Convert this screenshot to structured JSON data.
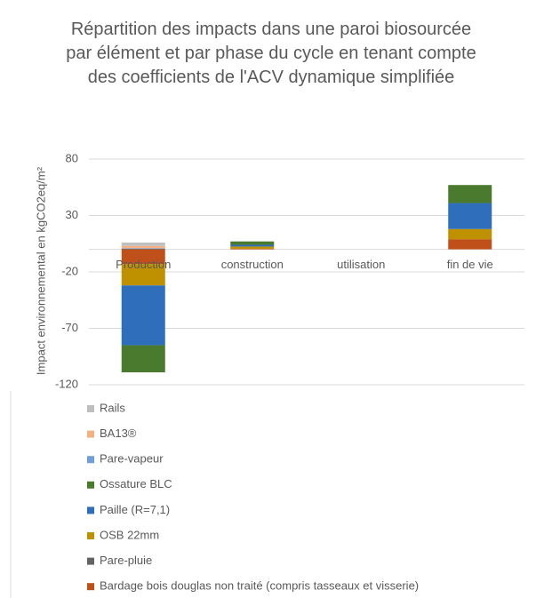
{
  "chart_data": {
    "type": "stacked_bar",
    "title": "Répartition des impacts dans une paroi biosourcée par élément et par phase du cycle en tenant compte des coefficients de l'ACV dynamique simplifiée",
    "y_label": "Impact environnemental en kgCO2eq/m²",
    "categories": [
      "Production",
      "construction",
      "utilisation",
      "fin de vie"
    ],
    "series": [
      {
        "name": "Rails",
        "color": "#bfbfbf",
        "values": [
          3,
          0,
          0,
          0
        ]
      },
      {
        "name": "BA13®",
        "color": "#f4b183",
        "values": [
          2,
          0,
          0,
          0
        ]
      },
      {
        "name": "Pare-vapeur",
        "color": "#6f9fd8",
        "values": [
          0.5,
          0,
          0,
          0
        ]
      },
      {
        "name": "Ossature BLC",
        "color": "#4a7a2e",
        "values": [
          -24,
          3,
          0,
          16
        ]
      },
      {
        "name": "Paille (R=7,1)",
        "color": "#2f6eba",
        "values": [
          -53,
          1.5,
          0,
          23
        ]
      },
      {
        "name": "OSB 22mm",
        "color": "#bf9000",
        "values": [
          -19,
          2,
          0,
          9
        ]
      },
      {
        "name": "Pare-pluie",
        "color": "#636363",
        "values": [
          0.5,
          0,
          0,
          0
        ]
      },
      {
        "name": "Bardage bois douglas non traité (compris tasseaux et visserie)",
        "color": "#c0501a",
        "values": [
          -13,
          0.5,
          0,
          9
        ]
      }
    ],
    "stack_order": [
      7,
      5,
      6,
      4,
      3,
      2,
      1,
      0
    ],
    "ylim": [
      -120,
      80
    ],
    "yticks": [
      -120,
      -70,
      -20,
      30,
      80
    ],
    "grid": true
  }
}
